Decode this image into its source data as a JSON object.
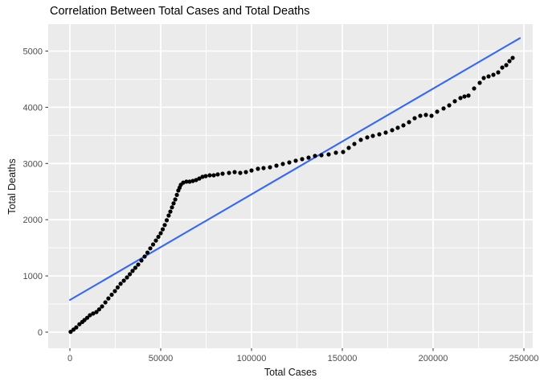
{
  "title": {
    "text": "Correlation Between Total Cases and Total Deaths"
  },
  "colors": {
    "panel_bg": "#EBEBEB",
    "grid_major": "#FFFFFF",
    "grid_minor": "#F5F5F5",
    "point": "#000000",
    "trend_line": "#3366FF",
    "tick_label": "#4D4D4D",
    "tick_mark": "#333333",
    "axis_title": "#111111"
  },
  "chart_data": {
    "type": "scatter",
    "title": "Correlation Between Total Cases and Total Deaths",
    "xlabel": "Total Cases",
    "ylabel": "Total Deaths",
    "xlim": [
      -12000,
      260000
    ],
    "ylim": [
      -290,
      5480
    ],
    "x_ticks": [
      0,
      50000,
      100000,
      150000,
      200000,
      250000
    ],
    "y_ticks": [
      0,
      1000,
      2000,
      3000,
      4000,
      5000
    ],
    "grid": "on",
    "legend": "none",
    "trend_line": {
      "x1": 0,
      "y1": 572,
      "x2": 247800,
      "y2": 5230
    },
    "points": [
      [
        400,
        6
      ],
      [
        2000,
        45
      ],
      [
        3500,
        85
      ],
      [
        5200,
        140
      ],
      [
        6800,
        180
      ],
      [
        8000,
        215
      ],
      [
        9500,
        255
      ],
      [
        11000,
        300
      ],
      [
        12800,
        330
      ],
      [
        14600,
        358
      ],
      [
        16100,
        405
      ],
      [
        17700,
        458
      ],
      [
        19500,
        530
      ],
      [
        21200,
        600
      ],
      [
        23000,
        665
      ],
      [
        24800,
        730
      ],
      [
        26300,
        795
      ],
      [
        27900,
        860
      ],
      [
        29700,
        915
      ],
      [
        31400,
        973
      ],
      [
        33000,
        1030
      ],
      [
        34500,
        1088
      ],
      [
        36000,
        1145
      ],
      [
        37600,
        1202
      ],
      [
        39400,
        1275
      ],
      [
        41150,
        1345
      ],
      [
        42700,
        1415
      ],
      [
        44250,
        1490
      ],
      [
        45800,
        1560
      ],
      [
        47350,
        1630
      ],
      [
        48700,
        1695
      ],
      [
        50000,
        1760
      ],
      [
        51100,
        1830
      ],
      [
        52200,
        1905
      ],
      [
        53300,
        1990
      ],
      [
        54400,
        2075
      ],
      [
        55300,
        2145
      ],
      [
        56200,
        2220
      ],
      [
        57100,
        2290
      ],
      [
        58000,
        2360
      ],
      [
        58900,
        2440
      ],
      [
        59700,
        2520
      ],
      [
        60400,
        2570
      ],
      [
        61050,
        2620
      ],
      [
        62400,
        2660
      ],
      [
        64160,
        2676
      ],
      [
        65930,
        2676
      ],
      [
        67700,
        2690
      ],
      [
        69470,
        2705
      ],
      [
        71240,
        2733
      ],
      [
        73000,
        2762
      ],
      [
        74780,
        2776
      ],
      [
        76990,
        2790
      ],
      [
        79200,
        2790
      ],
      [
        81420,
        2805
      ],
      [
        84070,
        2819
      ],
      [
        87610,
        2833
      ],
      [
        90710,
        2847
      ],
      [
        93800,
        2833
      ],
      [
        96900,
        2847
      ],
      [
        100000,
        2876
      ],
      [
        103540,
        2905
      ],
      [
        106640,
        2919
      ],
      [
        110180,
        2933
      ],
      [
        113720,
        2962
      ],
      [
        117260,
        2991
      ],
      [
        120800,
        3019
      ],
      [
        124340,
        3048
      ],
      [
        127880,
        3077
      ],
      [
        131420,
        3105
      ],
      [
        134960,
        3134
      ],
      [
        138500,
        3148
      ],
      [
        142480,
        3162
      ],
      [
        146460,
        3191
      ],
      [
        150440,
        3205
      ],
      [
        153540,
        3277
      ],
      [
        156640,
        3348
      ],
      [
        160180,
        3420
      ],
      [
        163720,
        3463
      ],
      [
        166810,
        3491
      ],
      [
        170350,
        3520
      ],
      [
        173890,
        3549
      ],
      [
        177430,
        3592
      ],
      [
        180530,
        3635
      ],
      [
        183630,
        3678
      ],
      [
        186730,
        3735
      ],
      [
        189820,
        3806
      ],
      [
        192920,
        3849
      ],
      [
        196020,
        3864
      ],
      [
        199120,
        3849
      ],
      [
        202210,
        3921
      ],
      [
        205750,
        3978
      ],
      [
        208850,
        4035
      ],
      [
        211950,
        4107
      ],
      [
        215040,
        4164
      ],
      [
        217260,
        4192
      ],
      [
        219470,
        4207
      ],
      [
        222570,
        4335
      ],
      [
        225660,
        4435
      ],
      [
        227880,
        4521
      ],
      [
        230530,
        4550
      ],
      [
        233190,
        4578
      ],
      [
        235840,
        4621
      ],
      [
        238050,
        4707
      ],
      [
        240270,
        4750
      ],
      [
        242040,
        4821
      ],
      [
        243810,
        4879
      ]
    ]
  },
  "axes": {
    "x": {
      "label": "Total Cases"
    },
    "y": {
      "label": "Total Deaths"
    }
  }
}
